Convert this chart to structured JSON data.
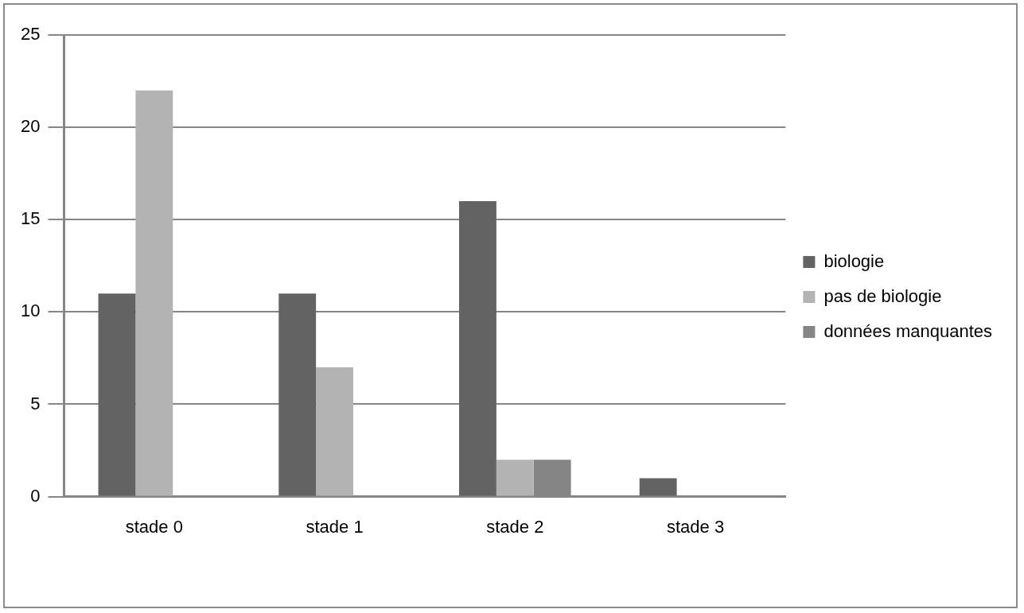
{
  "chart_data": {
    "type": "bar",
    "categories": [
      "stade 0",
      "stade 1",
      "stade 2",
      "stade 3"
    ],
    "series": [
      {
        "name": "biologie",
        "color": "#636363",
        "values": [
          11,
          11,
          16,
          1
        ]
      },
      {
        "name": "pas de biologie",
        "color": "#b3b3b3",
        "values": [
          22,
          7,
          2,
          0
        ]
      },
      {
        "name": "données manquantes",
        "color": "#858585",
        "values": [
          0,
          0,
          2,
          0
        ]
      }
    ],
    "ylim": [
      0,
      25
    ],
    "yticks": [
      0,
      5,
      10,
      15,
      20,
      25
    ],
    "grid": "y",
    "legend": "right"
  }
}
